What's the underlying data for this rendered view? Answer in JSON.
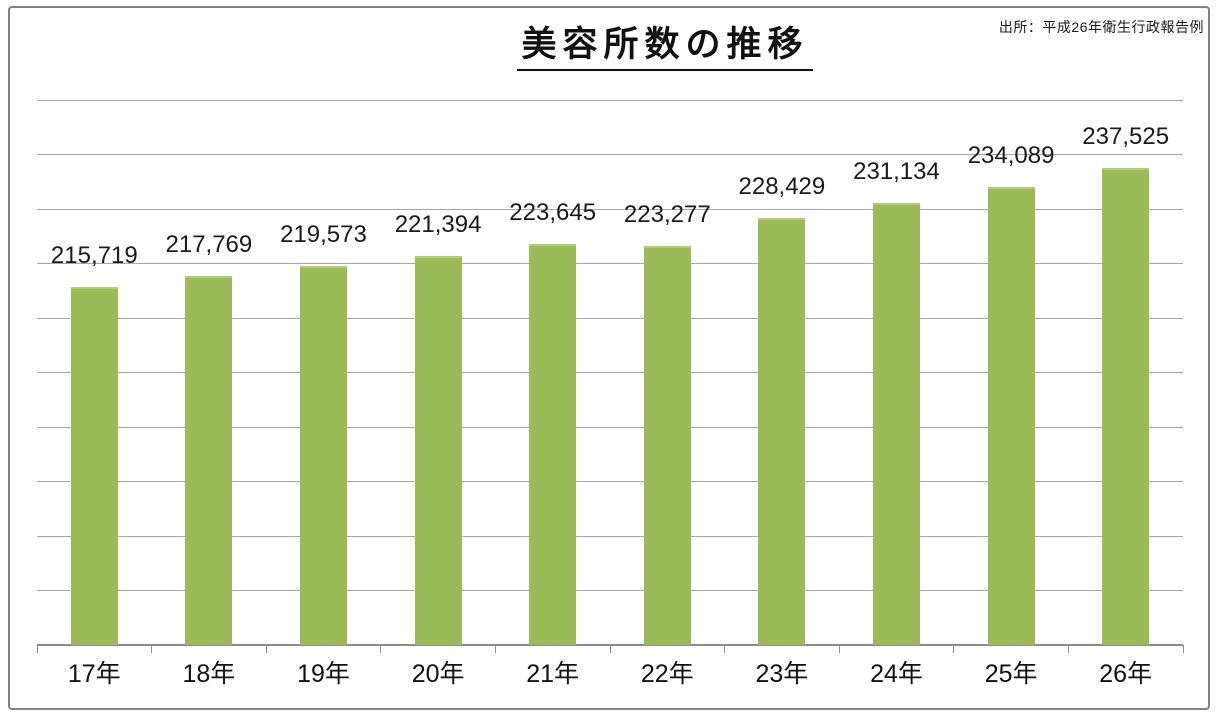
{
  "chart_data": {
    "type": "bar",
    "title": "美容所数の推移",
    "source": "出所：平成26年衛生行政報告例",
    "categories": [
      "17年",
      "18年",
      "19年",
      "20年",
      "21年",
      "22年",
      "23年",
      "24年",
      "25年",
      "26年"
    ],
    "values": [
      215719,
      217769,
      219573,
      221394,
      223645,
      223277,
      228429,
      231134,
      234089,
      237525
    ],
    "value_labels": [
      "215,719",
      "217,769",
      "219,573",
      "221,394",
      "223,645",
      "223,277",
      "228,429",
      "231,134",
      "234,089",
      "237,525"
    ],
    "xlabel": "",
    "ylabel": "",
    "ylim": [
      150000,
      250000
    ],
    "gridline_interval": 10000,
    "y_axis_labels_visible": false,
    "legend": "none",
    "grid": "horizontal",
    "colors": {
      "bar": "#9BBB59",
      "gridline": "#A6A6A6",
      "axis": "#8C8C8C",
      "text": "#1A1A1A",
      "frame_border": "#828282",
      "background": "#FFFFFF"
    }
  }
}
